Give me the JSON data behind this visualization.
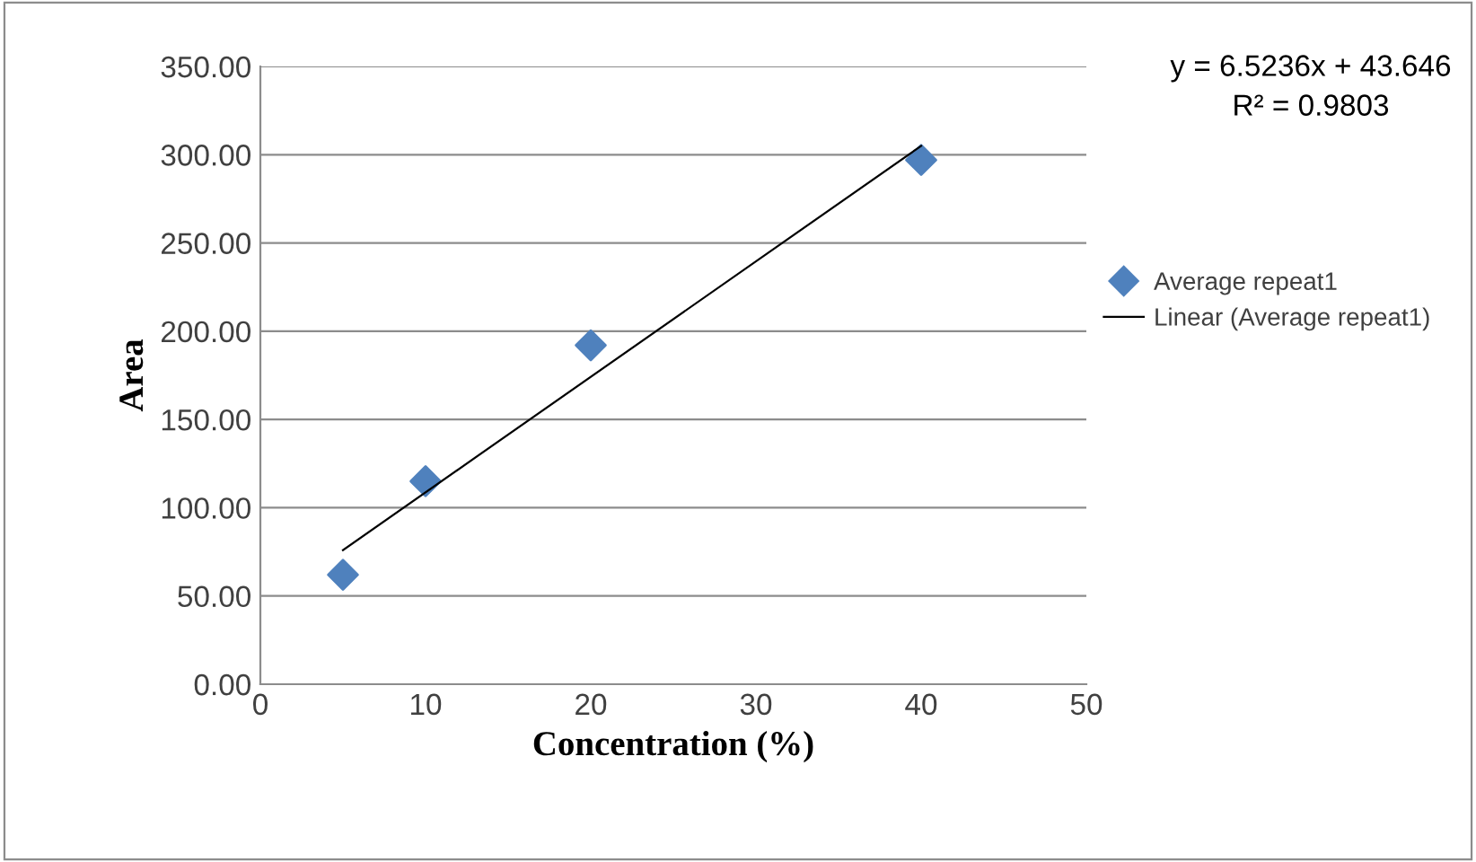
{
  "chart_data": {
    "type": "scatter",
    "xlabel": "Concentration (%)",
    "ylabel": "Area",
    "annotations": [
      "y = 6.5236x + 43.646",
      "R² = 0.9803"
    ],
    "series": [
      {
        "name": "Average repeat1",
        "color": "#4f81bd",
        "marker": "diamond",
        "x": [
          5,
          10,
          20,
          40
        ],
        "values": [
          62,
          115,
          192,
          297
        ]
      },
      {
        "name": "Linear (Average repeat1)",
        "type": "line",
        "color": "#000000",
        "marker": "none",
        "line_style": "solid",
        "x": [
          5,
          40
        ],
        "values": [
          76,
          305
        ]
      }
    ],
    "xlim": [
      0,
      50
    ],
    "xticks": [
      0,
      10,
      20,
      30,
      40,
      50
    ],
    "ylim": [
      0,
      350
    ],
    "yticks": [
      {
        "value": 0,
        "label": "0.00"
      },
      {
        "value": 50,
        "label": "50.00"
      },
      {
        "value": 100,
        "label": "100.00"
      },
      {
        "value": 150,
        "label": "150.00"
      },
      {
        "value": 200,
        "label": "200.00"
      },
      {
        "value": 250,
        "label": "250.00"
      },
      {
        "value": 300,
        "label": "300.00"
      },
      {
        "value": 350,
        "label": "350.00"
      }
    ],
    "grid": "y",
    "legend": "right"
  }
}
